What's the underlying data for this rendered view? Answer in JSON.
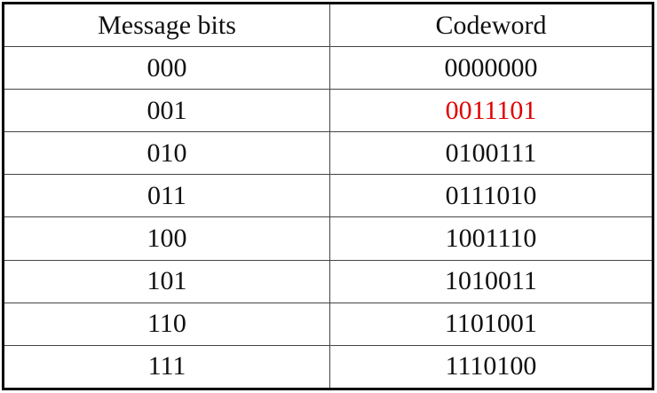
{
  "table": {
    "header": [
      "Message bits",
      "Codeword"
    ],
    "rows": [
      [
        "000",
        "0000000"
      ],
      [
        "001",
        {
          "text": "0011101",
          "color": "#e00000"
        }
      ],
      [
        "010",
        "0100111"
      ],
      [
        "011",
        "0111010"
      ],
      [
        "100",
        "1001110"
      ],
      [
        "101",
        "1010011"
      ],
      [
        "110",
        "1101001"
      ],
      [
        "111",
        "1110100"
      ]
    ]
  }
}
